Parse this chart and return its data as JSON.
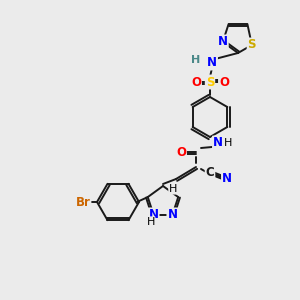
{
  "background_color": "#ebebeb",
  "bond_color": "#1a1a1a",
  "atom_colors": {
    "N": "#0000ff",
    "O": "#ff0000",
    "S_sulfonyl": "#ffcc00",
    "S_thiazole": "#ccaa00",
    "Br": "#cc6600",
    "C": "#1a1a1a",
    "H": "#4a8888"
  },
  "lw": 1.4,
  "fs": 8.5,
  "dbl_off": 2.2
}
